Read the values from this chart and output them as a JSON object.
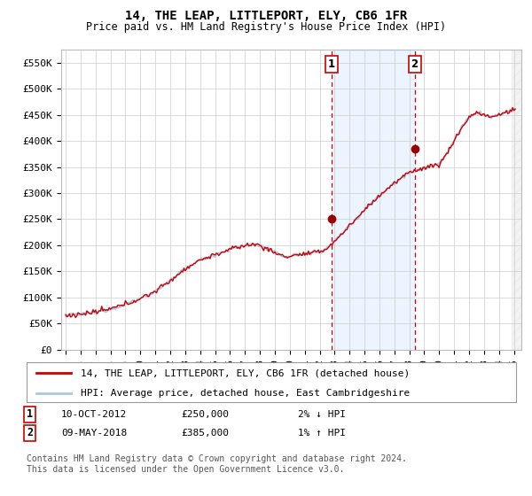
{
  "title": "14, THE LEAP, LITTLEPORT, ELY, CB6 1FR",
  "subtitle": "Price paid vs. HM Land Registry's House Price Index (HPI)",
  "ylabel_ticks": [
    "£0",
    "£50K",
    "£100K",
    "£150K",
    "£200K",
    "£250K",
    "£300K",
    "£350K",
    "£400K",
    "£450K",
    "£500K",
    "£550K"
  ],
  "ytick_values": [
    0,
    50000,
    100000,
    150000,
    200000,
    250000,
    300000,
    350000,
    400000,
    450000,
    500000,
    550000
  ],
  "ylim": [
    0,
    575000
  ],
  "xlim_start": 1994.7,
  "xlim_end": 2025.5,
  "hpi_color": "#a8c8e8",
  "price_color": "#cc0000",
  "marker1_date": 2012.78,
  "marker1_price": 250000,
  "marker2_date": 2018.36,
  "marker2_price": 385000,
  "marker_vline_color": "#cc0000",
  "marker_fill_color": "#ddeeff",
  "legend1_label": "14, THE LEAP, LITTLEPORT, ELY, CB6 1FR (detached house)",
  "legend2_label": "HPI: Average price, detached house, East Cambridgeshire",
  "annotation1_num": "1",
  "annotation1_date": "10-OCT-2012",
  "annotation1_price": "£250,000",
  "annotation1_hpi": "2% ↓ HPI",
  "annotation2_num": "2",
  "annotation2_date": "09-MAY-2018",
  "annotation2_price": "£385,000",
  "annotation2_hpi": "1% ↑ HPI",
  "footnote": "Contains HM Land Registry data © Crown copyright and database right 2024.\nThis data is licensed under the Open Government Licence v3.0.",
  "bg_color": "#ffffff",
  "plot_bg_color": "#ffffff",
  "grid_color": "#cccccc",
  "title_fontsize": 10,
  "subtitle_fontsize": 8.5,
  "tick_fontsize": 8,
  "legend_fontsize": 8,
  "annotation_fontsize": 8,
  "footnote_fontsize": 7
}
